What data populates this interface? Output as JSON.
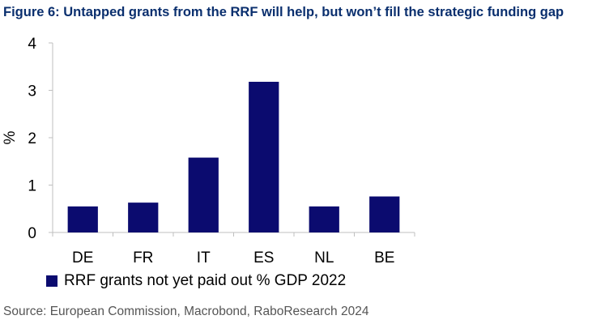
{
  "figure_title": "Figure 6: Untapped grants from the RRF will help, but won’t fill the strategic funding gap",
  "source": "Source: European Commission, Macrobond, RaboResearch 2024",
  "colors": {
    "title": "#0a2f6e",
    "bar": "#0b0b6f",
    "axis": "#bfbfbf",
    "source": "#555555"
  },
  "chart_data": {
    "type": "bar",
    "categories": [
      "DE",
      "FR",
      "IT",
      "ES",
      "NL",
      "BE"
    ],
    "series": [
      {
        "name": "RRF grants not yet paid out % GDP 2022",
        "values": [
          0.55,
          0.63,
          1.58,
          3.18,
          0.55,
          0.76
        ]
      }
    ],
    "ylabel": "%",
    "ylim": [
      0,
      4
    ],
    "yticks": [
      0,
      1,
      2,
      3,
      4
    ],
    "grid": false,
    "legend_position": "bottom"
  }
}
